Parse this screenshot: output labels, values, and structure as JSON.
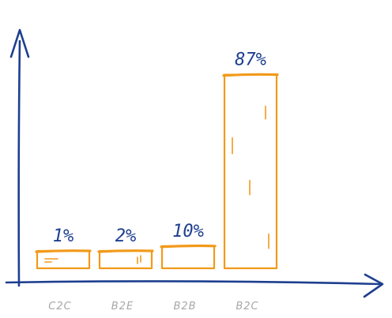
{
  "chart_data": {
    "type": "bar",
    "categories": [
      "C2C",
      "B2E",
      "B2B",
      "B2C"
    ],
    "values": [
      1,
      2,
      10,
      87
    ],
    "value_labels": [
      "1%",
      "2%",
      "10%",
      "87%"
    ],
    "title": "",
    "xlabel": "",
    "ylabel": "",
    "ylim": [
      0,
      100
    ],
    "grid": false,
    "legend": "none",
    "colors": {
      "bar": "#f29a1a",
      "bar_fill": "#ffffff",
      "axis": "#1e3f8f",
      "data_label": "#1e3f8f",
      "tick_label": "#a8a8a8"
    }
  }
}
